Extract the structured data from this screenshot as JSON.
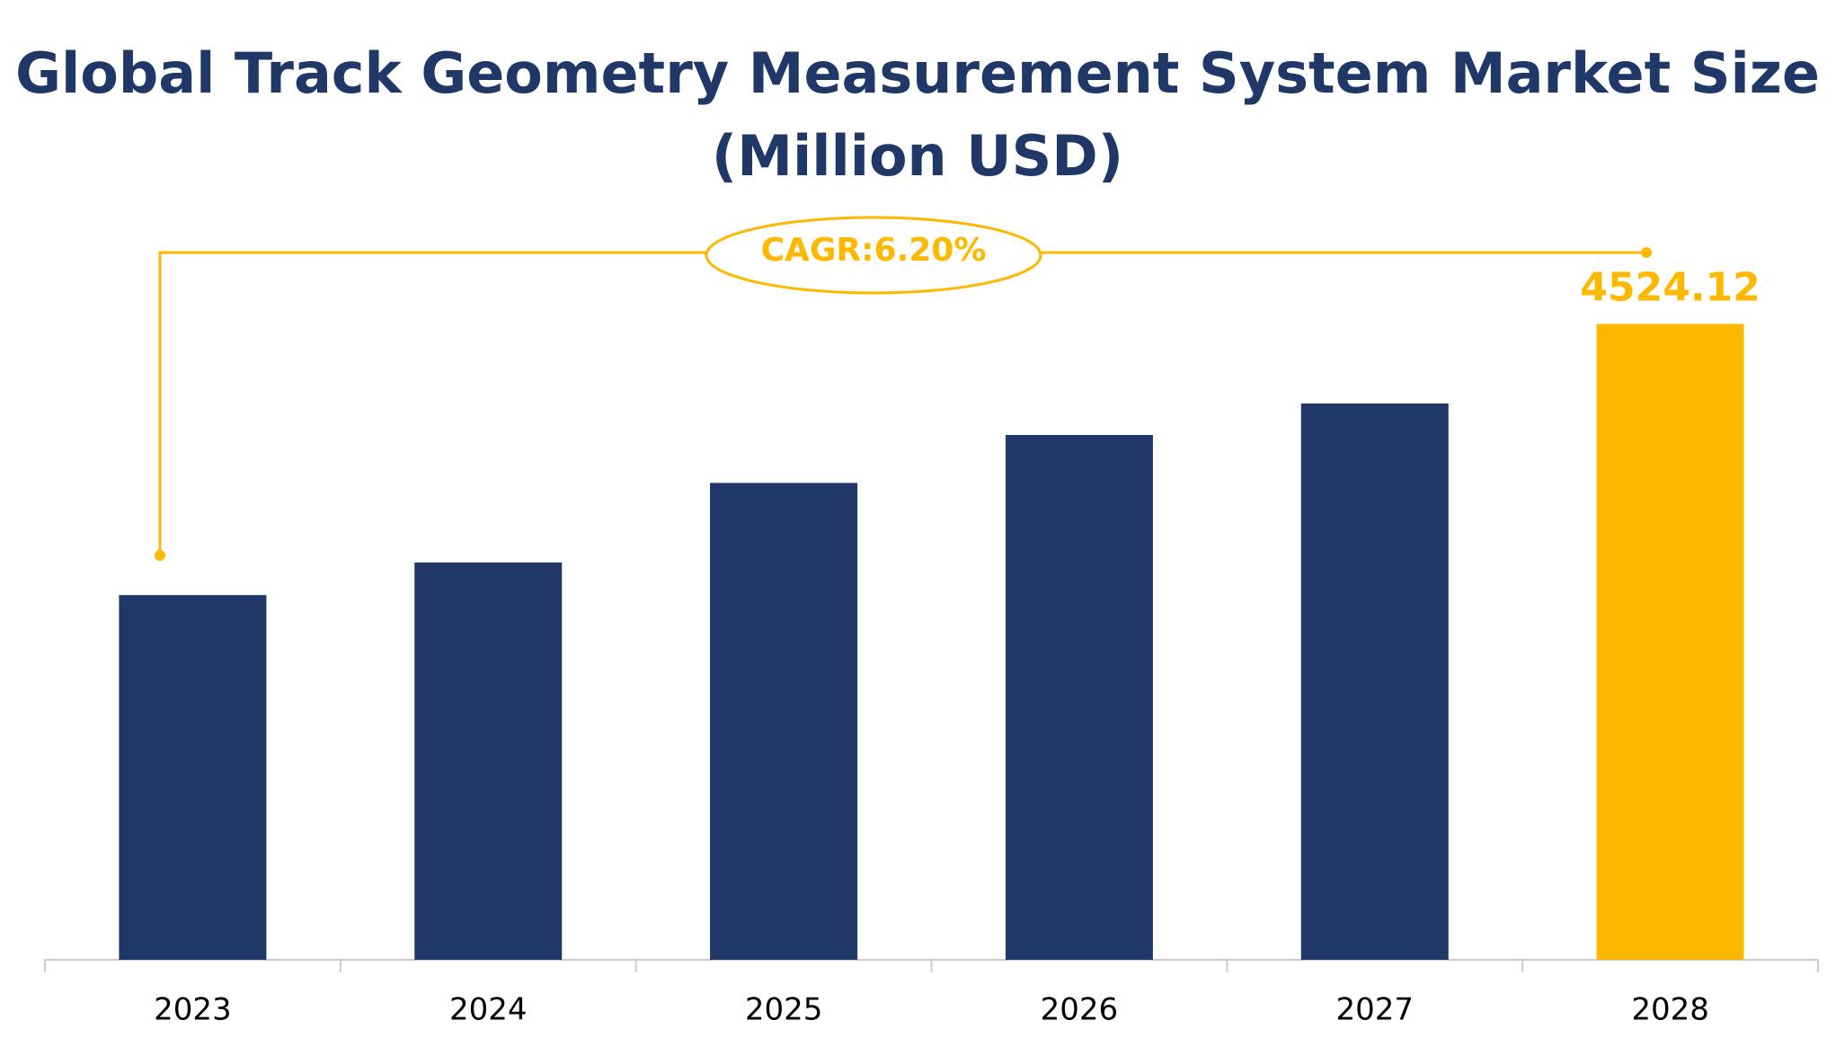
{
  "chart_data": {
    "type": "bar",
    "title": "Global Track Geometry Measurement System Market Size",
    "subtitle": "(Million USD)",
    "annotation": "CAGR:6.20%",
    "categories": [
      "2023",
      "2024",
      "2025",
      "2026",
      "2027",
      "2028"
    ],
    "values": [
      2595,
      2827,
      3393,
      3734,
      3958,
      4524.12
    ],
    "colors": [
      "#1f3868",
      "#1f3868",
      "#1f3868",
      "#1f3868",
      "#1f3868",
      "#ffb800"
    ],
    "label_color": "#ffb800",
    "ylim": [
      0,
      5000
    ]
  }
}
